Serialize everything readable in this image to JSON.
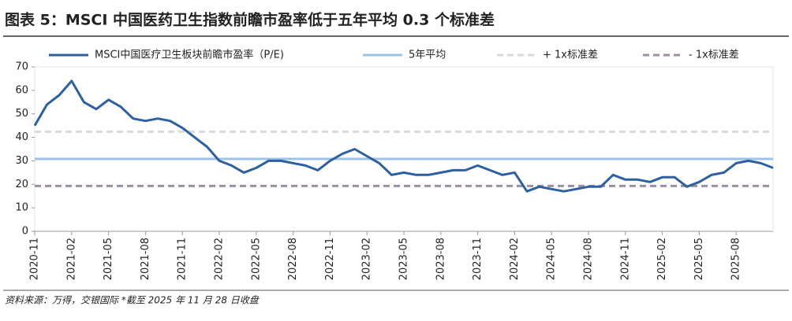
{
  "chart_data": {
    "type": "line",
    "title": "图表 5：MSCI 中国医药卫生指数前瞻市盈率低于五年平均 0.3 个标准差",
    "source": "资料来源：万得，交银国际   *截至 2025 年 11 月 28 日收盘",
    "x": [
      "2020-11",
      "2020-12",
      "2021-01",
      "2021-02",
      "2021-03",
      "2021-04",
      "2021-05",
      "2021-06",
      "2021-07",
      "2021-08",
      "2021-09",
      "2021-10",
      "2021-11",
      "2021-12",
      "2022-01",
      "2022-02",
      "2022-03",
      "2022-04",
      "2022-05",
      "2022-06",
      "2022-07",
      "2022-08",
      "2022-09",
      "2022-10",
      "2022-11",
      "2022-12",
      "2023-01",
      "2023-02",
      "2023-03",
      "2023-04",
      "2023-05",
      "2023-06",
      "2023-07",
      "2023-08",
      "2023-09",
      "2023-10",
      "2023-11",
      "2023-12",
      "2024-01",
      "2024-02",
      "2024-03",
      "2024-04",
      "2024-05",
      "2024-06",
      "2024-07",
      "2024-08",
      "2024-09",
      "2024-10",
      "2024-11",
      "2024-12",
      "2025-01",
      "2025-02",
      "2025-03",
      "2025-04",
      "2025-05",
      "2025-06",
      "2025-07",
      "2025-08",
      "2025-09",
      "2025-10",
      "2025-11"
    ],
    "series": [
      {
        "name": "MSCI中国医疗卫生板块前瞻市盈率（P/E)",
        "color": "#2e5f9e",
        "dashed": false,
        "width": 3,
        "values": [
          45,
          54,
          58,
          64,
          55,
          52,
          56,
          53,
          48,
          47,
          48,
          47,
          44,
          40,
          36,
          30,
          28,
          25,
          27,
          30,
          30,
          29,
          28,
          26,
          30,
          33,
          35,
          32,
          29,
          24,
          25,
          24,
          24,
          25,
          26,
          26,
          28,
          26,
          24,
          25,
          17,
          19,
          18,
          17,
          18,
          19,
          19,
          24,
          22,
          22,
          21,
          23,
          23,
          19,
          21,
          24,
          25,
          29,
          30,
          29,
          27
        ]
      },
      {
        "name": "5年平均",
        "color": "#9dc3e6",
        "dashed": false,
        "width": 3,
        "values": [
          30.8,
          30.8,
          30.8,
          30.8,
          30.8,
          30.8,
          30.8,
          30.8,
          30.8,
          30.8,
          30.8,
          30.8,
          30.8,
          30.8,
          30.8,
          30.8,
          30.8,
          30.8,
          30.8,
          30.8,
          30.8,
          30.8,
          30.8,
          30.8,
          30.8,
          30.8,
          30.8,
          30.8,
          30.8,
          30.8,
          30.8,
          30.8,
          30.8,
          30.8,
          30.8,
          30.8,
          30.8,
          30.8,
          30.8,
          30.8,
          30.8,
          30.8,
          30.8,
          30.8,
          30.8,
          30.8,
          30.8,
          30.8,
          30.8,
          30.8,
          30.8,
          30.8,
          30.8,
          30.8,
          30.8,
          30.8,
          30.8,
          30.8,
          30.8,
          30.8,
          30.8
        ]
      },
      {
        "name": "+ 1x标准差",
        "color": "#d9d9d9",
        "dashed": true,
        "width": 3,
        "values": [
          42.4,
          42.4,
          42.4,
          42.4,
          42.4,
          42.4,
          42.4,
          42.4,
          42.4,
          42.4,
          42.4,
          42.4,
          42.4,
          42.4,
          42.4,
          42.4,
          42.4,
          42.4,
          42.4,
          42.4,
          42.4,
          42.4,
          42.4,
          42.4,
          42.4,
          42.4,
          42.4,
          42.4,
          42.4,
          42.4,
          42.4,
          42.4,
          42.4,
          42.4,
          42.4,
          42.4,
          42.4,
          42.4,
          42.4,
          42.4,
          42.4,
          42.4,
          42.4,
          42.4,
          42.4,
          42.4,
          42.4,
          42.4,
          42.4,
          42.4,
          42.4,
          42.4,
          42.4,
          42.4,
          42.4,
          42.4,
          42.4,
          42.4,
          42.4,
          42.4,
          42.4
        ]
      },
      {
        "name": "- 1x标准差",
        "color": "#9b8ea5",
        "dashed": true,
        "width": 3,
        "values": [
          19.3,
          19.3,
          19.3,
          19.3,
          19.3,
          19.3,
          19.3,
          19.3,
          19.3,
          19.3,
          19.3,
          19.3,
          19.3,
          19.3,
          19.3,
          19.3,
          19.3,
          19.3,
          19.3,
          19.3,
          19.3,
          19.3,
          19.3,
          19.3,
          19.3,
          19.3,
          19.3,
          19.3,
          19.3,
          19.3,
          19.3,
          19.3,
          19.3,
          19.3,
          19.3,
          19.3,
          19.3,
          19.3,
          19.3,
          19.3,
          19.3,
          19.3,
          19.3,
          19.3,
          19.3,
          19.3,
          19.3,
          19.3,
          19.3,
          19.3,
          19.3,
          19.3,
          19.3,
          19.3,
          19.3,
          19.3,
          19.3,
          19.3,
          19.3,
          19.3,
          19.3
        ]
      }
    ],
    "xlim": [
      "2020-11",
      "2025-11"
    ],
    "xticks": [
      "2020-11",
      "2021-02",
      "2021-05",
      "2021-08",
      "2021-11",
      "2022-02",
      "2022-05",
      "2022-08",
      "2022-11",
      "2023-02",
      "2023-05",
      "2023-08",
      "2023-11",
      "2024-02",
      "2024-05",
      "2024-08",
      "2024-11",
      "2025-02",
      "2025-05",
      "2025-08"
    ],
    "ylim": [
      0,
      70
    ],
    "yticks": [
      0,
      10,
      20,
      30,
      40,
      50,
      60,
      70
    ],
    "grid": false
  }
}
